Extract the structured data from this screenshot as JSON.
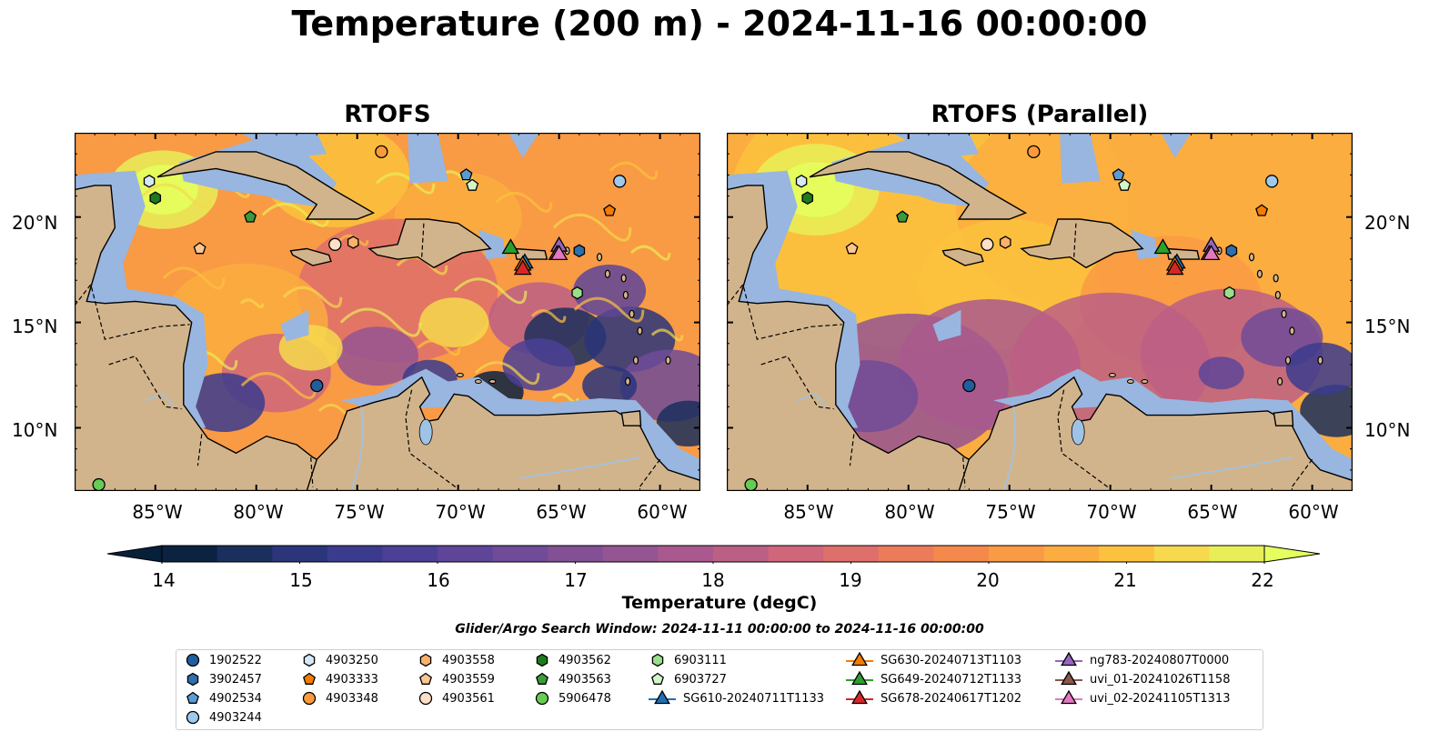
{
  "title": "Temperature (200 m) - 2024-11-16 00:00:00",
  "panels": [
    {
      "title": "RTOFS",
      "style": "eddy"
    },
    {
      "title": "RTOFS (Parallel)",
      "style": "smooth"
    }
  ],
  "axes": {
    "lon_labels": [
      "85°W",
      "80°W",
      "75°W",
      "70°W",
      "65°W",
      "60°W"
    ],
    "lon_values": [
      -85,
      -80,
      -75,
      -70,
      -65,
      -60
    ],
    "lat_labels": [
      "20°N",
      "15°N",
      "10°N"
    ],
    "lat_values": [
      20,
      15,
      10
    ],
    "lon_range": [
      -89,
      -58
    ],
    "lat_range": [
      7,
      24
    ]
  },
  "colorbar": {
    "label": "Temperature (degC)",
    "tick_labels": [
      "14",
      "15",
      "16",
      "17",
      "18",
      "19",
      "20",
      "21",
      "22"
    ],
    "tick_values": [
      14,
      15,
      16,
      17,
      18,
      19,
      20,
      21,
      22
    ],
    "range": [
      14,
      22
    ],
    "colors": [
      "#0b2240",
      "#1a2f5c",
      "#2a357a",
      "#3b3b8e",
      "#4b3f96",
      "#5e4598",
      "#704b98",
      "#834f95",
      "#955492",
      "#a9598d",
      "#bc5f85",
      "#cf667a",
      "#df6f6a",
      "#ec7b5a",
      "#f5894c",
      "#f99a44",
      "#fbad40",
      "#fcc23d",
      "#f6d94c",
      "#e8ee57"
    ],
    "under_color": "#07203a",
    "over_color": "#e5ff5e"
  },
  "colors": {
    "land": "#d2b48c",
    "shelf": "#98b6e0",
    "deep_pacific": "#082335",
    "river": "#9ec3e6"
  },
  "search_window": "Glider/Argo Search Window: 2024-11-11 00:00:00 to 2024-11-16 00:00:00",
  "legend": [
    {
      "id": "1902522",
      "marker": "circle",
      "color": "#1f5f9e"
    },
    {
      "id": "3902457",
      "marker": "hexagon",
      "color": "#2e6fad"
    },
    {
      "id": "4902534",
      "marker": "pentagon",
      "color": "#5b9bd5"
    },
    {
      "id": "4903244",
      "marker": "circle",
      "color": "#9ec9ec"
    },
    {
      "id": "4903250",
      "marker": "hexagon",
      "color": "#d4e8f7"
    },
    {
      "id": "4903333",
      "marker": "pentagon",
      "color": "#f57c00"
    },
    {
      "id": "4903348",
      "marker": "circle",
      "color": "#fb9a3c"
    },
    {
      "id": "4903558",
      "marker": "hexagon",
      "color": "#fdb06a"
    },
    {
      "id": "4903559",
      "marker": "pentagon",
      "color": "#fdc592"
    },
    {
      "id": "4903561",
      "marker": "circle",
      "color": "#fde0c8"
    },
    {
      "id": "4903562",
      "marker": "hexagon",
      "color": "#1f7a1f"
    },
    {
      "id": "4903563",
      "marker": "pentagon",
      "color": "#3a9b3a"
    },
    {
      "id": "5906478",
      "marker": "circle",
      "color": "#66cc55"
    },
    {
      "id": "6903111",
      "marker": "hexagon",
      "color": "#99e08a"
    },
    {
      "id": "6903727",
      "marker": "pentagon",
      "color": "#d4f5c9"
    },
    {
      "id": "SG610-20240711T1133",
      "marker": "triangle",
      "color": "#1f6fb4"
    },
    {
      "id": "SG630-20240713T1103",
      "marker": "triangle",
      "color": "#f57c00"
    },
    {
      "id": "SG649-20240712T1133",
      "marker": "triangle",
      "color": "#2ca02c"
    },
    {
      "id": "SG678-20240617T1202",
      "marker": "triangle",
      "color": "#d62728"
    },
    {
      "id": "ng783-20240807T0000",
      "marker": "triangle",
      "color": "#9467bd"
    },
    {
      "id": "uvi_01-20241026T1158",
      "marker": "triangle",
      "color": "#8c564b"
    },
    {
      "id": "uvi_02-20241105T1313",
      "marker": "triangle",
      "color": "#e377c2"
    }
  ],
  "observations": [
    {
      "id": "1902522",
      "lon": -77.0,
      "lat": 12.0
    },
    {
      "id": "3902457",
      "lon": -64.0,
      "lat": 18.4
    },
    {
      "id": "4902534",
      "lon": -69.6,
      "lat": 22.0
    },
    {
      "id": "4903244",
      "lon": -62.0,
      "lat": 21.7
    },
    {
      "id": "4903250",
      "lon": -85.3,
      "lat": 21.7
    },
    {
      "id": "4903333",
      "lon": -62.5,
      "lat": 20.3
    },
    {
      "id": "4903348",
      "lon": -73.8,
      "lat": 23.1
    },
    {
      "id": "4903558",
      "lon": -75.2,
      "lat": 18.8
    },
    {
      "id": "4903559",
      "lon": -82.8,
      "lat": 18.5
    },
    {
      "id": "4903561",
      "lon": -76.1,
      "lat": 18.7
    },
    {
      "id": "4903562",
      "lon": -85.0,
      "lat": 20.9
    },
    {
      "id": "4903563",
      "lon": -80.3,
      "lat": 20.0
    },
    {
      "id": "5906478",
      "lon": -87.8,
      "lat": 7.3
    },
    {
      "id": "6903111",
      "lon": -64.1,
      "lat": 16.4
    },
    {
      "id": "6903727",
      "lon": -69.3,
      "lat": 21.5
    },
    {
      "id": "SG610-20240711T1133",
      "lon": -66.7,
      "lat": 17.8
    },
    {
      "id": "SG630-20240713T1103",
      "lon": -66.8,
      "lat": 17.7
    },
    {
      "id": "SG649-20240712T1133",
      "lon": -67.4,
      "lat": 18.5
    },
    {
      "id": "SG678-20240617T1202",
      "lon": -66.8,
      "lat": 17.5
    },
    {
      "id": "ng783-20240807T0000",
      "lon": -65.0,
      "lat": 18.6
    },
    {
      "id": "uvi_01-20241026T1158",
      "lon": -65.1,
      "lat": 18.2
    },
    {
      "id": "uvi_02-20241105T1313",
      "lon": -65.0,
      "lat": 18.2
    }
  ]
}
